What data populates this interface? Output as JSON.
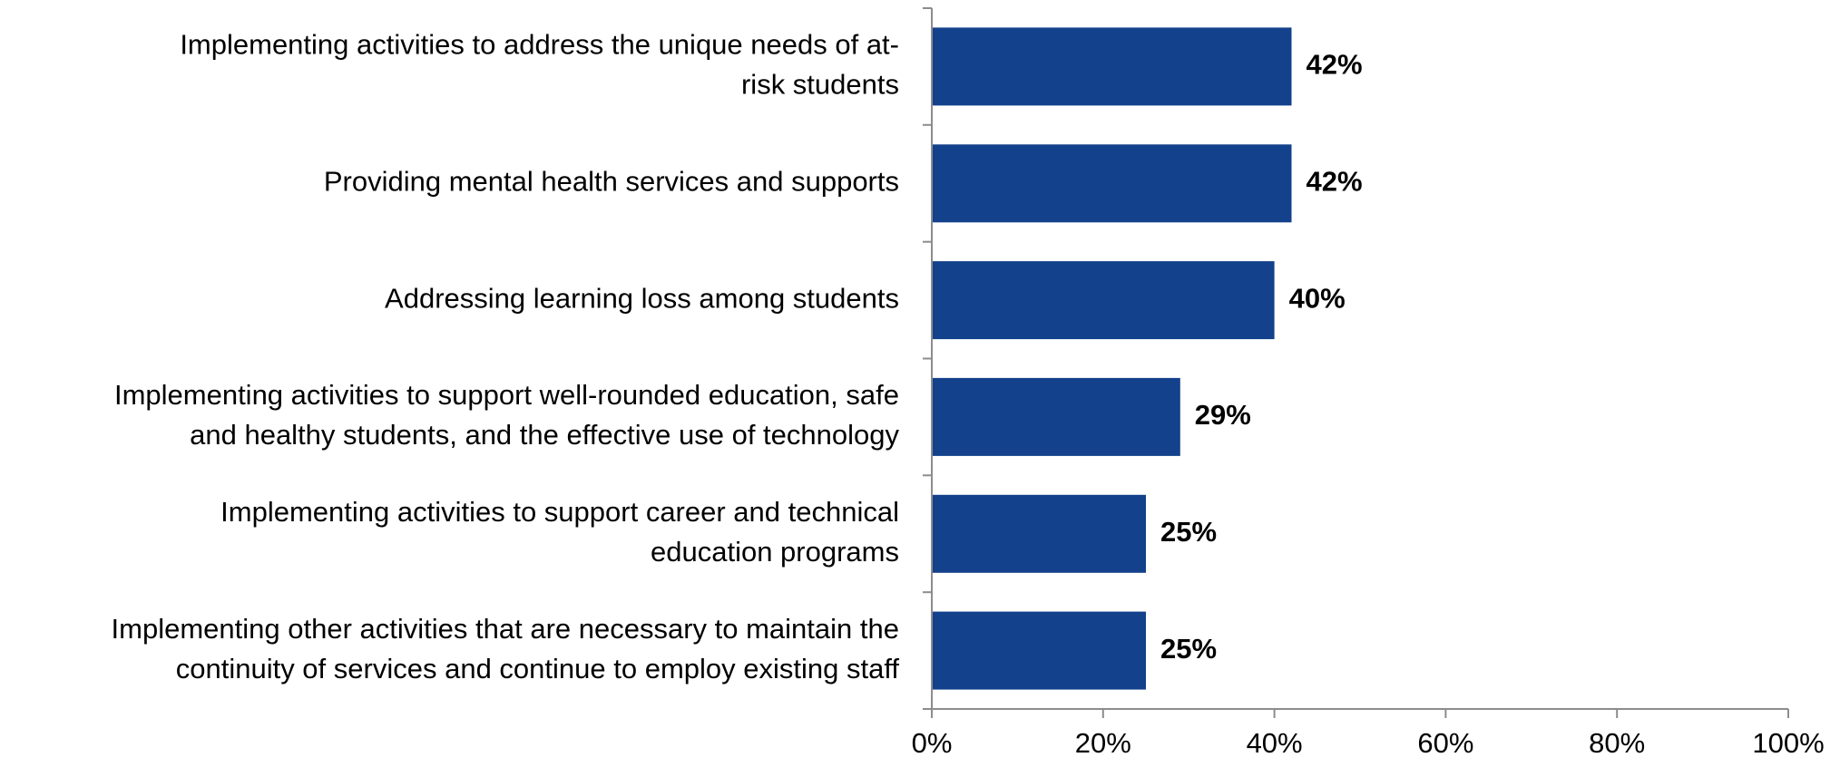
{
  "chart_data": {
    "type": "bar",
    "orientation": "horizontal",
    "categories": [
      [
        "Implementing activities to address the unique needs of at-",
        "risk students"
      ],
      [
        "Providing mental health services and supports"
      ],
      [
        "Addressing learning loss among students"
      ],
      [
        "Implementing activities to support well-rounded education, safe",
        "and healthy students, and the effective use of technology"
      ],
      [
        "Implementing activities to support career and technical",
        "education programs"
      ],
      [
        "Implementing other activities that are necessary to maintain the",
        "continuity of services and continue to employ existing staff"
      ]
    ],
    "values": [
      42,
      42,
      40,
      29,
      25,
      25
    ],
    "value_labels": [
      "42%",
      "42%",
      "40%",
      "29%",
      "25%",
      "25%"
    ],
    "xlim": [
      0,
      100
    ],
    "x_ticks": [
      0,
      20,
      40,
      60,
      80,
      100
    ],
    "x_tick_labels": [
      "0%",
      "20%",
      "40%",
      "60%",
      "80%",
      "100%"
    ],
    "bar_color": "#13418b",
    "grid": false,
    "legend": "none"
  }
}
